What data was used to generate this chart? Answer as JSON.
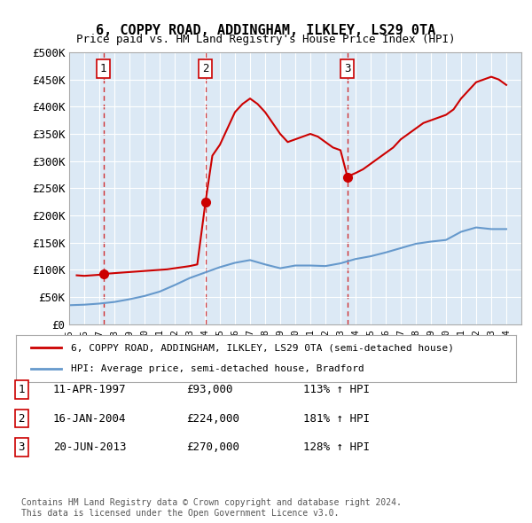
{
  "title": "6, COPPY ROAD, ADDINGHAM, ILKLEY, LS29 0TA",
  "subtitle": "Price paid vs. HM Land Registry's House Price Index (HPI)",
  "background_color": "#dce9f5",
  "plot_bg_color": "#dce9f5",
  "ylabel_ticks": [
    "£0",
    "£50K",
    "£100K",
    "£150K",
    "£200K",
    "£250K",
    "£300K",
    "£350K",
    "£400K",
    "£450K",
    "£500K"
  ],
  "ytick_values": [
    0,
    50000,
    100000,
    150000,
    200000,
    250000,
    300000,
    350000,
    400000,
    450000,
    500000
  ],
  "ylim": [
    0,
    500000
  ],
  "xlim_start": 1995.0,
  "xlim_end": 2025.0,
  "sale_dates": [
    1997.28,
    2004.04,
    2013.47
  ],
  "sale_prices": [
    93000,
    224000,
    270000
  ],
  "sale_labels": [
    "1",
    "2",
    "3"
  ],
  "legend_line1": "6, COPPY ROAD, ADDINGHAM, ILKLEY, LS29 0TA (semi-detached house)",
  "legend_line2": "HPI: Average price, semi-detached house, Bradford",
  "table_data": [
    [
      "1",
      "11-APR-1997",
      "£93,000",
      "113% ↑ HPI"
    ],
    [
      "2",
      "16-JAN-2004",
      "£224,000",
      "181% ↑ HPI"
    ],
    [
      "3",
      "20-JUN-2013",
      "£270,000",
      "128% ↑ HPI"
    ]
  ],
  "footer": "Contains HM Land Registry data © Crown copyright and database right 2024.\nThis data is licensed under the Open Government Licence v3.0.",
  "red_line_color": "#cc0000",
  "blue_line_color": "#6699cc",
  "dashed_line_color": "#cc0000",
  "hpi_line": {
    "years": [
      1995,
      1996,
      1997,
      1998,
      1999,
      2000,
      2001,
      2002,
      2003,
      2004,
      2005,
      2006,
      2007,
      2008,
      2009,
      2010,
      2011,
      2012,
      2013,
      2014,
      2015,
      2016,
      2017,
      2018,
      2019,
      2020,
      2021,
      2022,
      2023,
      2024
    ],
    "values": [
      35000,
      36000,
      38000,
      41000,
      46000,
      52000,
      60000,
      72000,
      85000,
      95000,
      105000,
      113000,
      118000,
      110000,
      103000,
      108000,
      108000,
      107000,
      112000,
      120000,
      125000,
      132000,
      140000,
      148000,
      152000,
      155000,
      170000,
      178000,
      175000,
      175000
    ]
  },
  "price_line": {
    "years": [
      1995.5,
      1996.0,
      1996.5,
      1997.0,
      1997.28,
      1997.5,
      1998.0,
      1998.5,
      1999.0,
      1999.5,
      2000.0,
      2000.5,
      2001.0,
      2001.5,
      2002.0,
      2002.5,
      2003.0,
      2003.5,
      2004.04,
      2004.5,
      2005.0,
      2005.5,
      2006.0,
      2006.5,
      2007.0,
      2007.5,
      2008.0,
      2008.5,
      2009.0,
      2009.5,
      2010.0,
      2010.5,
      2011.0,
      2011.5,
      2012.0,
      2012.5,
      2013.0,
      2013.47,
      2013.5,
      2014.0,
      2014.5,
      2015.0,
      2015.5,
      2016.0,
      2016.5,
      2017.0,
      2017.5,
      2018.0,
      2018.5,
      2019.0,
      2019.5,
      2020.0,
      2020.5,
      2021.0,
      2021.5,
      2022.0,
      2022.5,
      2023.0,
      2023.5,
      2024.0
    ],
    "values": [
      90000,
      89000,
      90000,
      91000,
      93000,
      93000,
      94000,
      95000,
      96000,
      97000,
      98000,
      99000,
      100000,
      101000,
      103000,
      105000,
      107000,
      110000,
      224000,
      310000,
      330000,
      360000,
      390000,
      405000,
      415000,
      405000,
      390000,
      370000,
      350000,
      335000,
      340000,
      345000,
      350000,
      345000,
      335000,
      325000,
      320000,
      270000,
      272000,
      278000,
      285000,
      295000,
      305000,
      315000,
      325000,
      340000,
      350000,
      360000,
      370000,
      375000,
      380000,
      385000,
      395000,
      415000,
      430000,
      445000,
      450000,
      455000,
      450000,
      440000
    ]
  }
}
